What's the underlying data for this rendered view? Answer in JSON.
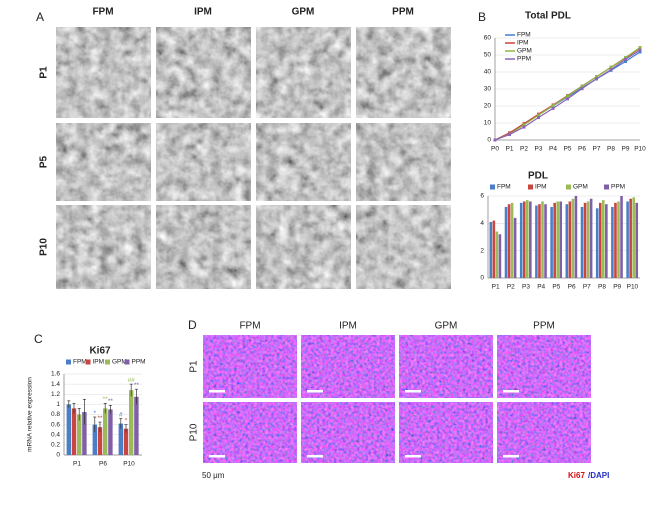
{
  "chart_data": [
    {
      "type": "line",
      "title": "Total PDL",
      "categories": [
        "P0",
        "P1",
        "P2",
        "P3",
        "P4",
        "P5",
        "P6",
        "P7",
        "P8",
        "P9",
        "P10"
      ],
      "ylim": [
        0,
        60
      ],
      "yticks": [
        0,
        10,
        20,
        30,
        40,
        50,
        60
      ],
      "legend": "upper left",
      "series": [
        {
          "name": "FPM",
          "color": "#3f7fd0",
          "values": [
            0,
            4.1,
            9.3,
            14.8,
            20.1,
            25.3,
            30.7,
            35.9,
            41,
            46.2,
            51.8
          ]
        },
        {
          "name": "IPM",
          "color": "#d0403c",
          "values": [
            0,
            4.2,
            9.6,
            15.2,
            20.6,
            26.1,
            31.7,
            37.2,
            42.7,
            48.2,
            54
          ]
        },
        {
          "name": "GPM",
          "color": "#8fb840",
          "values": [
            0,
            3.4,
            8.9,
            14.6,
            20.2,
            25.8,
            31.6,
            37.2,
            42.9,
            48.5,
            54.4
          ]
        },
        {
          "name": "PPM",
          "color": "#8a64b8",
          "values": [
            0,
            3.2,
            7.6,
            13.2,
            18.6,
            24.2,
            30.2,
            36,
            41.4,
            47.4,
            52.9
          ]
        }
      ]
    },
    {
      "type": "bar",
      "title": "PDL",
      "categories": [
        "P1",
        "P2",
        "P3",
        "P4",
        "P5",
        "P6",
        "P7",
        "P8",
        "P9",
        "P10"
      ],
      "ylim": [
        0,
        6
      ],
      "yticks": [
        0,
        2,
        4,
        6
      ],
      "legend": "top",
      "series": [
        {
          "name": "FPM",
          "color": "#4a7fc8",
          "values": [
            4.1,
            5.2,
            5.5,
            5.3,
            5.2,
            5.4,
            5.2,
            5.1,
            5.2,
            5.6
          ]
        },
        {
          "name": "IPM",
          "color": "#c8463f",
          "values": [
            4.2,
            5.4,
            5.6,
            5.4,
            5.5,
            5.6,
            5.5,
            5.5,
            5.5,
            5.8
          ]
        },
        {
          "name": "GPM",
          "color": "#9bbb59",
          "values": [
            3.4,
            5.5,
            5.7,
            5.6,
            5.6,
            5.8,
            5.6,
            5.7,
            5.6,
            5.9
          ]
        },
        {
          "name": "PPM",
          "color": "#7f5fa8",
          "values": [
            3.2,
            4.4,
            5.6,
            5.4,
            5.6,
            6.0,
            5.8,
            5.4,
            6.0,
            5.5
          ]
        }
      ]
    },
    {
      "type": "bar",
      "title": "Ki67",
      "y_label": "mRNA relative expression",
      "categories": [
        "P1",
        "P6",
        "P10"
      ],
      "ylim": [
        0,
        1.6
      ],
      "yticks": [
        0,
        0.2,
        0.4,
        0.6,
        0.8,
        1,
        1.2,
        1.4,
        1.6
      ],
      "legend": "top",
      "series": [
        {
          "name": "FPM",
          "color": "#4a7fc8",
          "values": [
            1.0,
            0.6,
            0.62
          ],
          "errors": [
            0.07,
            0.15,
            0.1
          ],
          "annotations": [
            null,
            "*",
            "#"
          ]
        },
        {
          "name": "IPM",
          "color": "#c8463f",
          "values": [
            0.92,
            0.55,
            0.52
          ],
          "errors": [
            0.1,
            0.1,
            0.08
          ],
          "annotations": [
            null,
            "**",
            "*"
          ]
        },
        {
          "name": "GPM",
          "color": "#9bbb59",
          "values": [
            0.8,
            0.92,
            1.28
          ],
          "errors": [
            0.12,
            0.1,
            0.12
          ],
          "annotations": [
            null,
            "**",
            "##"
          ]
        },
        {
          "name": "PPM",
          "color": "#7f5fa8",
          "values": [
            0.85,
            0.9,
            1.15
          ],
          "errors": [
            0.25,
            0.08,
            0.15
          ],
          "annotations": [
            null,
            "**",
            "**"
          ]
        }
      ]
    }
  ],
  "panels": {
    "A": {
      "label": "A",
      "columns": [
        "FPM",
        "IPM",
        "GPM",
        "PPM"
      ],
      "rows": [
        "P1",
        "P5",
        "P10"
      ]
    },
    "B": {
      "label": "B"
    },
    "C": {
      "label": "C"
    },
    "D": {
      "label": "D",
      "columns": [
        "FPM",
        "IPM",
        "GPM",
        "PPM"
      ],
      "rows": [
        "P1",
        "P10"
      ],
      "scale_bar": "50 μm",
      "stain": [
        "Ki67",
        "/DAPI"
      ]
    }
  }
}
